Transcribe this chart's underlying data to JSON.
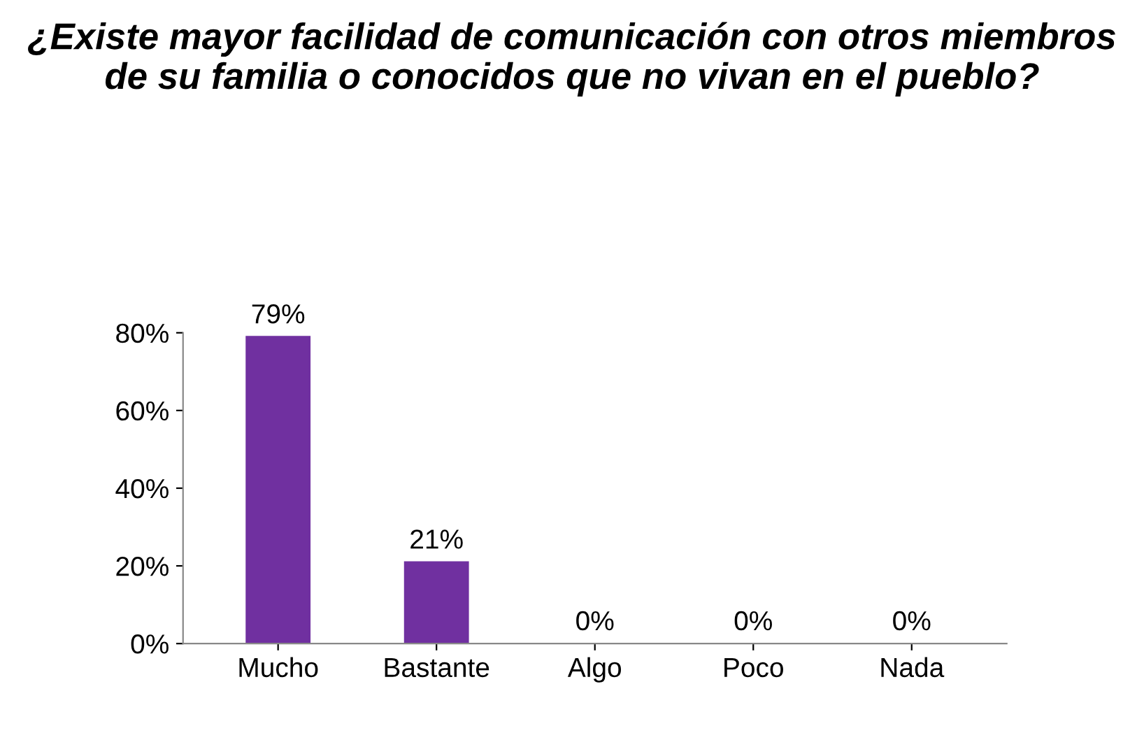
{
  "chart_data": {
    "type": "bar",
    "title": "¿Existe mayor facilidad de comunicación con otros miembros de su familia o conocidos que no vivan en el pueblo?",
    "categories": [
      "Mucho",
      "Bastante",
      "Algo",
      "Poco",
      "Nada"
    ],
    "values": [
      79,
      21,
      0,
      0,
      0
    ],
    "value_labels": [
      "79%",
      "21%",
      "0%",
      "0%",
      "0%"
    ],
    "color": "#7030a0",
    "ylim": [
      0,
      80
    ],
    "yticks": [
      {
        "value": 0,
        "label": "0%"
      },
      {
        "value": 20,
        "label": "20%"
      },
      {
        "value": 40,
        "label": "40%"
      },
      {
        "value": 60,
        "label": "60%"
      },
      {
        "value": 80,
        "label": "80%"
      }
    ],
    "grid": false,
    "legend": false
  }
}
